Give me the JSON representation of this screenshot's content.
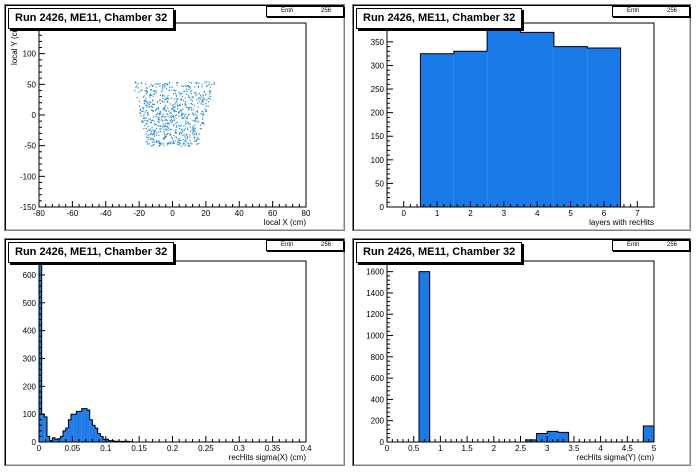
{
  "colors": {
    "fill": "#1a7ae8",
    "line": "#000000",
    "marker": "#2a8bd0",
    "background": "#ffffff"
  },
  "chart_data": [
    {
      "type": "scatter",
      "title": "Run 2426, ME11, Chamber 32",
      "stat": {
        "name": "Entri",
        "value": "256"
      },
      "xlabel": "local X (cm)",
      "ylabel": "local Y (cm)",
      "xlim": [
        -80,
        80
      ],
      "ylim": [
        -150,
        150
      ],
      "xticks": [
        -80,
        -60,
        -40,
        -20,
        0,
        20,
        40,
        60,
        80
      ],
      "yticks": [
        -150,
        -100,
        -50,
        0,
        50,
        100,
        150
      ],
      "region": {
        "y_range": [
          -50,
          55
        ],
        "x_halfwidth_at_bottom": 15,
        "x_halfwidth_at_top": 25
      },
      "grid": false
    },
    {
      "type": "bar",
      "title": "Run 2426, ME11, Chamber 32",
      "stat": {
        "name": "Entri",
        "value": "256"
      },
      "xlabel": "layers with recHits",
      "ylabel": "",
      "xlim": [
        -0.5,
        7.5
      ],
      "ylim": [
        0,
        390
      ],
      "xticks": [
        0,
        1,
        2,
        3,
        4,
        5,
        6,
        7
      ],
      "yticks": [
        0,
        50,
        100,
        150,
        200,
        250,
        300,
        350
      ],
      "bin_edges": [
        0.5,
        1.5,
        2.5,
        3.5,
        4.5,
        5.5,
        6.5
      ],
      "values": [
        325,
        330,
        378,
        370,
        340,
        337
      ],
      "grid": false
    },
    {
      "type": "bar",
      "title": "Run 2426, ME11, Chamber 32",
      "stat": {
        "name": "Entri",
        "value": "256"
      },
      "xlabel": "recHits sigma(X) (cm)",
      "ylabel": "",
      "xlim": [
        0,
        0.4
      ],
      "ylim": [
        0,
        650
      ],
      "xticks": [
        0,
        0.05,
        0.1,
        0.15,
        0.2,
        0.25,
        0.3,
        0.35,
        0.4
      ],
      "yticks": [
        0,
        100,
        200,
        300,
        400,
        500,
        600
      ],
      "bin_start": 0,
      "bin_width": 0.004,
      "values": [
        650,
        100,
        90,
        20,
        5,
        15,
        10,
        12,
        20,
        40,
        50,
        80,
        100,
        100,
        110,
        110,
        120,
        120,
        115,
        80,
        60,
        50,
        30,
        20,
        10,
        10,
        5,
        5,
        3,
        3,
        2,
        2,
        3,
        2,
        1
      ],
      "grid": false
    },
    {
      "type": "bar",
      "title": "Run 2426, ME11, Chamber 32",
      "stat": {
        "name": "Entri",
        "value": "256"
      },
      "xlabel": "recHits sigma(Y) (cm)",
      "ylabel": "",
      "xlim": [
        0,
        5
      ],
      "ylim": [
        0,
        1700
      ],
      "xticks": [
        0,
        0.5,
        1,
        1.5,
        2,
        2.5,
        3,
        3.5,
        4,
        4.5,
        5
      ],
      "yticks": [
        0,
        200,
        400,
        600,
        800,
        1000,
        1200,
        1400,
        1600
      ],
      "bin_start": 0,
      "bin_width": 0.2,
      "values": [
        0,
        0,
        0,
        1600,
        0,
        0,
        0,
        0,
        0,
        0,
        0,
        0,
        0,
        20,
        80,
        100,
        90,
        0,
        0,
        0,
        0,
        0,
        0,
        0,
        150
      ],
      "grid": false
    }
  ]
}
